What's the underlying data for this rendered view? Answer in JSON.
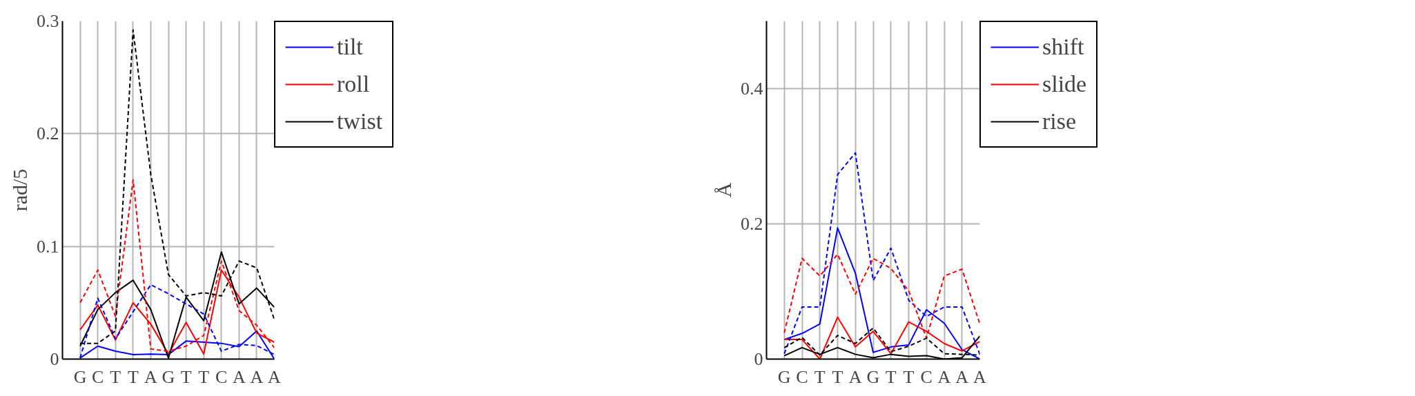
{
  "chart_data": [
    {
      "type": "line",
      "ylabel": "rad/5",
      "categories": [
        "G",
        "C",
        "T",
        "T",
        "A",
        "G",
        "T",
        "T",
        "C",
        "A",
        "A",
        "A"
      ],
      "ylim": [
        0,
        0.3
      ],
      "yticks": [
        0,
        0.1,
        0.2,
        0.3
      ],
      "grid": true,
      "legend": "top right",
      "series": [
        {
          "name": "tilt",
          "color": "#0000ff",
          "line_style": "solid",
          "values": [
            0.001,
            0.0115,
            0.007,
            0.004,
            0.0045,
            0.004,
            0.016,
            0.015,
            0.014,
            0.011,
            0.025,
            0
          ]
        },
        {
          "name": "roll",
          "color": "#ff0000",
          "line_style": "solid",
          "values": [
            0.026,
            0.048,
            0.017,
            0.05,
            0.031,
            0.0045,
            0.0325,
            0.0045,
            0.079,
            0.055,
            0.023,
            0.015
          ]
        },
        {
          "name": "twist",
          "color": "#000000",
          "line_style": "solid",
          "values": [
            0.0115,
            0.044,
            0.059,
            0.07,
            0.044,
            0.001,
            0.055,
            0.034,
            0.095,
            0.049,
            0.063,
            0.046
          ]
        },
        {
          "color": "#0000ff",
          "line_style": "dashed",
          "values": [
            0.001,
            0.054,
            0.018,
            0.042,
            0.066,
            0.058,
            0.049,
            0.04,
            0.007,
            0.013,
            0.012,
            0.004
          ]
        },
        {
          "color": "#ff0000",
          "line_style": "dashed",
          "values": [
            0.05,
            0.079,
            0.038,
            0.159,
            0.009,
            0.007,
            0.0115,
            0.021,
            0.087,
            0.043,
            0.03,
            0.01
          ]
        },
        {
          "color": "#000000",
          "line_style": "dashed",
          "values": [
            0.014,
            0.014,
            0.025,
            0.292,
            0.164,
            0.075,
            0.056,
            0.059,
            0.056,
            0.087,
            0.081,
            0.035
          ]
        }
      ]
    },
    {
      "type": "line",
      "ylabel": "Å",
      "categories": [
        "G",
        "C",
        "T",
        "T",
        "A",
        "G",
        "T",
        "T",
        "C",
        "A",
        "A",
        "A"
      ],
      "ylim": [
        0,
        0.5
      ],
      "yticks": [
        0,
        0.2,
        0.4
      ],
      "grid": true,
      "legend": "top right",
      "series": [
        {
          "name": "shift",
          "color": "#0000ff",
          "line_style": "solid",
          "values": [
            0.029,
            0.038,
            0.052,
            0.194,
            0.127,
            0.01,
            0.018,
            0.021,
            0.073,
            0.053,
            0.014,
            0
          ]
        },
        {
          "name": "slide",
          "color": "#ff0000",
          "line_style": "solid",
          "values": [
            0.029,
            0.029,
            0,
            0.062,
            0.018,
            0.041,
            0.008,
            0.055,
            0.041,
            0.023,
            0.012,
            0.026
          ]
        },
        {
          "name": "rise",
          "color": "#000000",
          "line_style": "solid",
          "values": [
            0.005,
            0.017,
            0.007,
            0.017,
            0.007,
            0.002,
            0.007,
            0.004,
            0.005,
            0,
            0.002,
            0.034
          ]
        },
        {
          "color": "#0000ff",
          "line_style": "dashed",
          "values": [
            0.008,
            0.077,
            0.077,
            0.273,
            0.305,
            0.116,
            0.164,
            0.087,
            0.063,
            0.077,
            0.077,
            0.007
          ]
        },
        {
          "color": "#ff0000",
          "line_style": "dashed",
          "values": [
            0.039,
            0.149,
            0.123,
            0.155,
            0.096,
            0.149,
            0.134,
            0.101,
            0.031,
            0.123,
            0.133,
            0.052
          ]
        },
        {
          "color": "#000000",
          "line_style": "dashed",
          "values": [
            0.017,
            0.032,
            0.006,
            0.035,
            0.023,
            0.046,
            0.011,
            0.019,
            0.031,
            0.008,
            0.007,
            0.006
          ]
        }
      ]
    }
  ]
}
